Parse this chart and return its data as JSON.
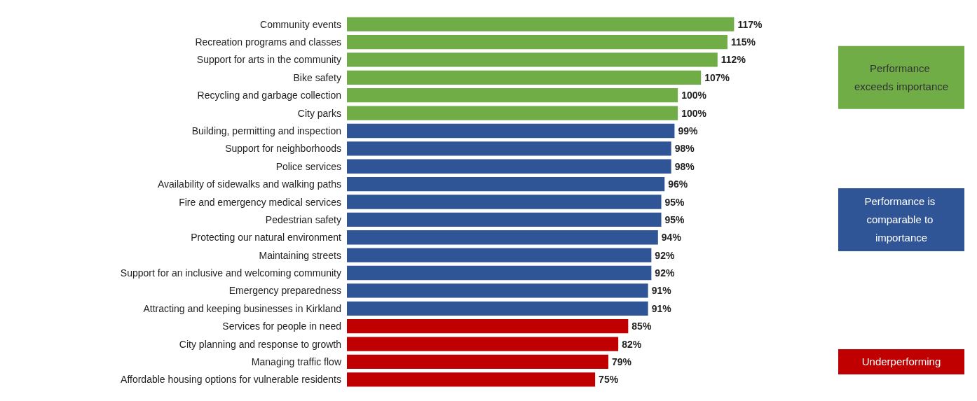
{
  "chart_data": {
    "type": "bar",
    "orientation": "horizontal",
    "stacked": true,
    "legend": "right",
    "data_labels": true,
    "categories": [
      "Community events",
      "Recreation programs and classes",
      "Support for arts in the community",
      "Bike safety",
      "Recycling and garbage collection",
      "City parks",
      "Building, permitting and inspection",
      "Support for neighborhoods",
      "Police services",
      "Availability of sidewalks and walking paths",
      "Fire and emergency medical services",
      "Pedestrian safety",
      "Protecting our natural environment",
      "Maintaining streets",
      "Support for an inclusive and welcoming community",
      "Emergency preparedness",
      "Attracting and keeping businesses in Kirkland",
      "Services for people in need",
      "City planning and response to growth",
      "Managing traffic flow",
      "Affordable housing options for vulnerable residents"
    ],
    "series": [
      {
        "name": "Performance exceeds importance",
        "color": "#70ad47",
        "values": [
          117,
          115,
          112,
          107,
          100,
          100,
          null,
          null,
          null,
          null,
          null,
          null,
          null,
          null,
          null,
          null,
          null,
          null,
          null,
          null,
          null
        ],
        "value_labels": [
          "117%",
          "115%",
          "112%",
          "107%",
          "100%",
          "100%",
          null,
          null,
          null,
          null,
          null,
          null,
          null,
          null,
          null,
          null,
          null,
          null,
          null,
          null,
          null
        ]
      },
      {
        "name": "Performance is comparable to importance",
        "color": "#2f5597",
        "values": [
          null,
          null,
          null,
          null,
          null,
          null,
          99,
          98,
          98,
          96,
          95,
          95,
          94,
          92,
          92,
          91,
          91,
          null,
          null,
          null,
          null
        ],
        "value_labels": [
          null,
          null,
          null,
          null,
          null,
          null,
          "99%",
          "98%",
          "98%",
          "96%",
          "95%",
          "95%",
          "94%",
          "92%",
          "92%",
          "91%",
          "91%",
          null,
          null,
          null,
          null
        ]
      },
      {
        "name": "Underperforming",
        "color": "#c00000",
        "values": [
          null,
          null,
          null,
          null,
          null,
          null,
          null,
          null,
          null,
          null,
          null,
          null,
          null,
          null,
          null,
          null,
          null,
          85,
          82,
          79,
          75
        ],
        "value_labels": [
          null,
          null,
          null,
          null,
          null,
          null,
          null,
          null,
          null,
          null,
          null,
          null,
          null,
          null,
          null,
          null,
          null,
          "85%",
          "82%",
          "79%",
          "75%"
        ]
      }
    ]
  }
}
